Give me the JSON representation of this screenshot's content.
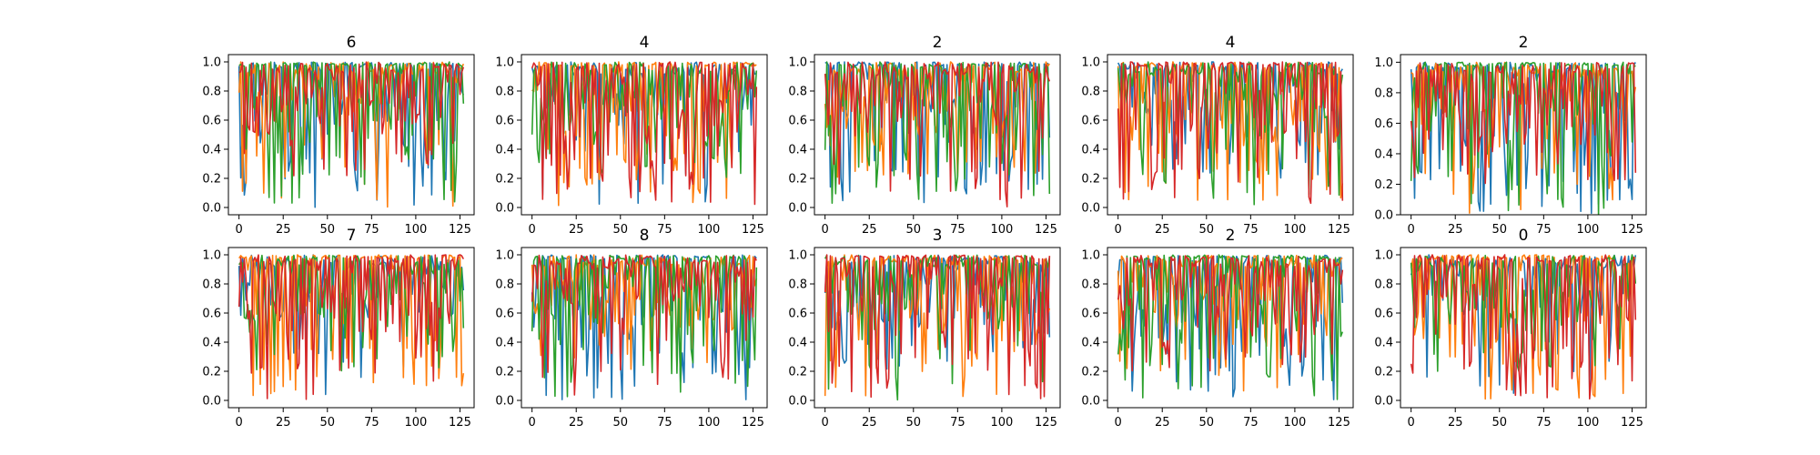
{
  "chart_data": [
    {
      "type": "line",
      "title": "6",
      "x_range": [
        0,
        127
      ],
      "xlim": [
        -6,
        133
      ],
      "ylim": [
        -0.05,
        1.05
      ],
      "xticks": [
        0,
        25,
        50,
        75,
        100,
        125
      ],
      "yticks": [
        0.0,
        0.2,
        0.4,
        0.6,
        0.8,
        1.0
      ],
      "n_points": 128,
      "series_count": 4,
      "seed": 101
    },
    {
      "type": "line",
      "title": "4",
      "x_range": [
        0,
        127
      ],
      "xlim": [
        -6,
        133
      ],
      "ylim": [
        -0.05,
        1.05
      ],
      "xticks": [
        0,
        25,
        50,
        75,
        100,
        125
      ],
      "yticks": [
        0.0,
        0.2,
        0.4,
        0.6,
        0.8,
        1.0
      ],
      "n_points": 128,
      "series_count": 4,
      "seed": 202
    },
    {
      "type": "line",
      "title": "2",
      "x_range": [
        0,
        127
      ],
      "xlim": [
        -6,
        133
      ],
      "ylim": [
        -0.05,
        1.05
      ],
      "xticks": [
        0,
        25,
        50,
        75,
        100,
        125
      ],
      "yticks": [
        0.0,
        0.2,
        0.4,
        0.6,
        0.8,
        1.0
      ],
      "n_points": 128,
      "series_count": 4,
      "seed": 303
    },
    {
      "type": "line",
      "title": "4",
      "x_range": [
        0,
        127
      ],
      "xlim": [
        -6,
        133
      ],
      "ylim": [
        -0.05,
        1.05
      ],
      "xticks": [
        0,
        25,
        50,
        75,
        100,
        125
      ],
      "yticks": [
        0.0,
        0.2,
        0.4,
        0.6,
        0.8,
        1.0
      ],
      "n_points": 128,
      "series_count": 4,
      "seed": 404
    },
    {
      "type": "line",
      "title": "2",
      "x_range": [
        0,
        127
      ],
      "xlim": [
        -6,
        133
      ],
      "ylim": [
        -0.0,
        1.05
      ],
      "xticks": [
        0,
        25,
        50,
        75,
        100,
        125
      ],
      "yticks": [
        0.0,
        0.2,
        0.4,
        0.6,
        0.8,
        1.0
      ],
      "n_points": 128,
      "series_count": 4,
      "seed": 505
    },
    {
      "type": "line",
      "title": "7",
      "x_range": [
        0,
        127
      ],
      "xlim": [
        -6,
        133
      ],
      "ylim": [
        -0.05,
        1.05
      ],
      "xticks": [
        0,
        25,
        50,
        75,
        100,
        125
      ],
      "yticks": [
        0.0,
        0.2,
        0.4,
        0.6,
        0.8,
        1.0
      ],
      "n_points": 128,
      "series_count": 4,
      "seed": 606
    },
    {
      "type": "line",
      "title": "8",
      "x_range": [
        0,
        127
      ],
      "xlim": [
        -6,
        133
      ],
      "ylim": [
        -0.05,
        1.05
      ],
      "xticks": [
        0,
        25,
        50,
        75,
        100,
        125
      ],
      "yticks": [
        0.0,
        0.2,
        0.4,
        0.6,
        0.8,
        1.0
      ],
      "n_points": 128,
      "series_count": 4,
      "seed": 707
    },
    {
      "type": "line",
      "title": "3",
      "x_range": [
        0,
        127
      ],
      "xlim": [
        -6,
        133
      ],
      "ylim": [
        -0.05,
        1.05
      ],
      "xticks": [
        0,
        25,
        50,
        75,
        100,
        125
      ],
      "yticks": [
        0.0,
        0.2,
        0.4,
        0.6,
        0.8,
        1.0
      ],
      "n_points": 128,
      "series_count": 4,
      "seed": 808
    },
    {
      "type": "line",
      "title": "2",
      "x_range": [
        0,
        127
      ],
      "xlim": [
        -6,
        133
      ],
      "ylim": [
        -0.05,
        1.05
      ],
      "xticks": [
        0,
        25,
        50,
        75,
        100,
        125
      ],
      "yticks": [
        0.0,
        0.2,
        0.4,
        0.6,
        0.8,
        1.0
      ],
      "n_points": 128,
      "series_count": 4,
      "seed": 909
    },
    {
      "type": "line",
      "title": "0",
      "x_range": [
        0,
        127
      ],
      "xlim": [
        -6,
        133
      ],
      "ylim": [
        -0.05,
        1.05
      ],
      "xticks": [
        0,
        25,
        50,
        75,
        100,
        125
      ],
      "yticks": [
        0.0,
        0.2,
        0.4,
        0.6,
        0.8,
        1.0
      ],
      "n_points": 128,
      "series_count": 4,
      "seed": 1010
    }
  ],
  "colors": [
    "#1f77b4",
    "#ff7f0e",
    "#2ca02c",
    "#d62728"
  ],
  "grid": false,
  "legend": "none"
}
